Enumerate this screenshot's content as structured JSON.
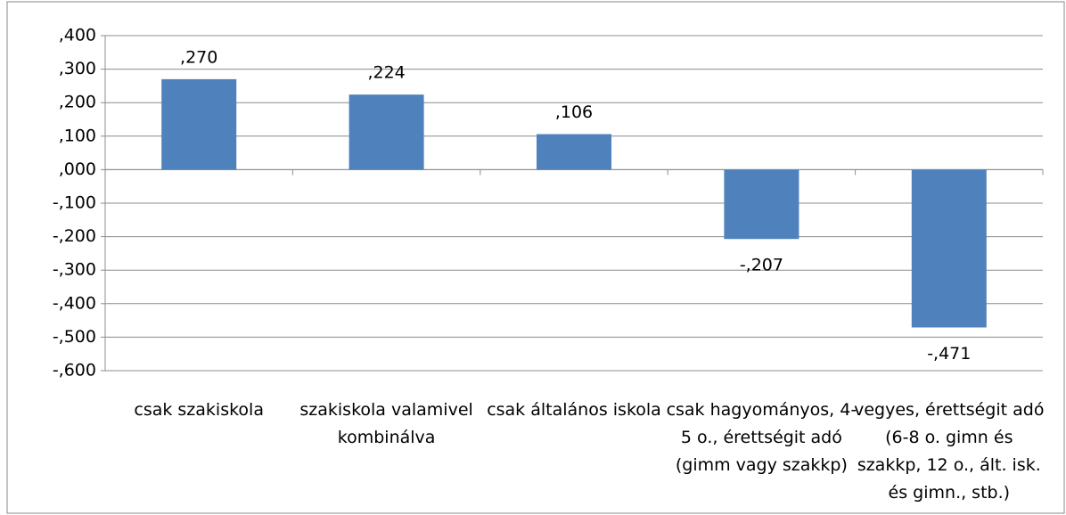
{
  "chart_data": {
    "type": "bar",
    "categories": [
      "csak szakiskola",
      "szakiskola valamivel kombinálva",
      "csak általános iskola",
      "csak hagyományos, 4-5 o., érettségit adó (gimm vagy szakkp)",
      "vegyes, érettségit adó (6-8 o. gimn és szakkp, 12 o., ált. isk. és gimn., stb.)"
    ],
    "values": [
      0.27,
      0.224,
      0.106,
      -0.207,
      -0.471
    ],
    "value_labels": [
      ",270",
      ",224",
      ",106",
      "-,207",
      "-,471"
    ],
    "color": "#4f81bd",
    "ylim": [
      -0.6,
      0.4
    ],
    "yticks": [
      {
        "value": -0.6,
        "label": "-,600"
      },
      {
        "value": -0.5,
        "label": "-,500"
      },
      {
        "value": -0.4,
        "label": "-,400"
      },
      {
        "value": -0.3,
        "label": "-,300"
      },
      {
        "value": -0.2,
        "label": "-,200"
      },
      {
        "value": -0.1,
        "label": "-,100"
      },
      {
        "value": 0,
        "label": ",000"
      },
      {
        "value": 0.1,
        "label": ",100"
      },
      {
        "value": 0.2,
        "label": ",200"
      },
      {
        "value": 0.3,
        "label": ",300"
      },
      {
        "value": 0.4,
        "label": ",400"
      }
    ],
    "grid": true
  }
}
